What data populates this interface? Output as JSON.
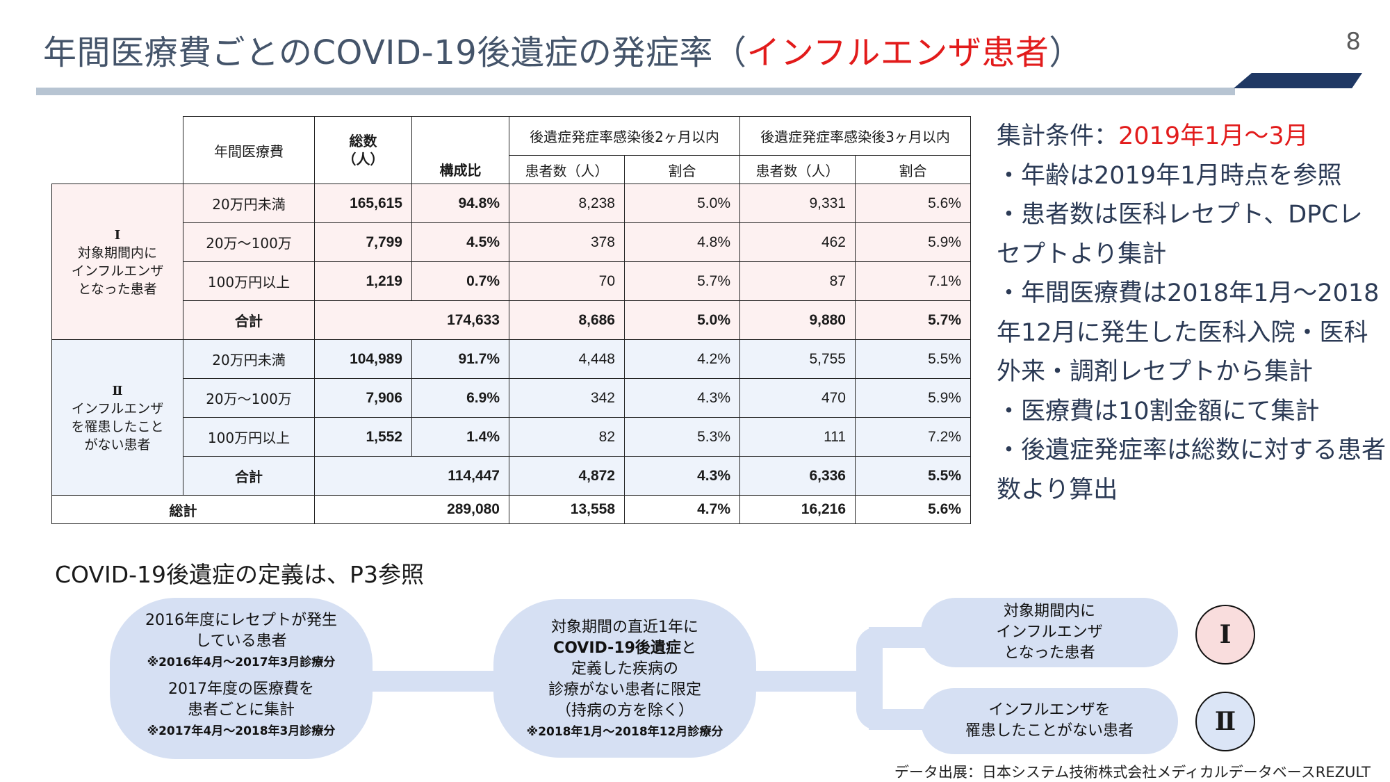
{
  "title": {
    "main": "年間医療費ごとのCOVID-19後遺症の発症率（",
    "highlight": "インフルエンザ患者",
    "end": "）"
  },
  "page_number": "8",
  "table": {
    "h_medical_cost": "年間医療費",
    "h_total": "総数\n（人）",
    "h_ratio": "構成比",
    "h_group2m": "後遺症発症率感染後2ヶ月以内",
    "h_group3m": "後遺症発症率感染後3ヶ月以内",
    "h_patients": "患者数（人）",
    "h_rate": "割合",
    "g1_label_roman": "Ⅰ",
    "g1_label": "対象期間内に\nインフルエンザ\nとなった患者",
    "g2_label_roman": "Ⅱ",
    "g2_label": "インフルエンザ\nを罹患したこと\nがない患者",
    "g1_rows": [
      {
        "cat": "20万円未満",
        "total": "165,615",
        "ratio": "94.8%",
        "p2": "8,238",
        "r2": "5.0%",
        "p3": "9,331",
        "r3": "5.6%"
      },
      {
        "cat": "20万〜100万",
        "total": "7,799",
        "ratio": "4.5%",
        "p2": "378",
        "r2": "4.8%",
        "p3": "462",
        "r3": "5.9%"
      },
      {
        "cat": "100万円以上",
        "total": "1,219",
        "ratio": "0.7%",
        "p2": "70",
        "r2": "5.7%",
        "p3": "87",
        "r3": "7.1%"
      }
    ],
    "g1_subtotal": {
      "cat": "合計",
      "total": "174,633",
      "p2": "8,686",
      "r2": "5.0%",
      "p3": "9,880",
      "r3": "5.7%"
    },
    "g2_rows": [
      {
        "cat": "20万円未満",
        "total": "104,989",
        "ratio": "91.7%",
        "p2": "4,448",
        "r2": "4.2%",
        "p3": "5,755",
        "r3": "5.5%"
      },
      {
        "cat": "20万〜100万",
        "total": "7,906",
        "ratio": "6.9%",
        "p2": "342",
        "r2": "4.3%",
        "p3": "470",
        "r3": "5.9%"
      },
      {
        "cat": "100万円以上",
        "total": "1,552",
        "ratio": "1.4%",
        "p2": "82",
        "r2": "5.3%",
        "p3": "111",
        "r3": "7.2%"
      }
    ],
    "g2_subtotal": {
      "cat": "合計",
      "total": "114,447",
      "p2": "4,872",
      "r2": "4.3%",
      "p3": "6,336",
      "r3": "5.5%"
    },
    "grand_total": {
      "cat": "総計",
      "total": "289,080",
      "p2": "13,558",
      "r2": "4.7%",
      "p3": "16,216",
      "r3": "5.6%"
    }
  },
  "notes": {
    "cond_label": "集計条件：",
    "cond_period": "2019年1月〜3月",
    "items": [
      "・年齢は2019年1月時点を参照",
      "・患者数は医科レセプト、DPCレセプトより集計",
      "・年間医療費は2018年1月〜2018年12月に発生した医科入院・医科外来・調剤レセプトから集計",
      "・医療費は10割金額にて集計",
      "・後遺症発症率は総数に対する患者数より算出"
    ]
  },
  "definition_note": "COVID-19後遺症の定義は、P3参照",
  "flow": {
    "box1_line1": "2016年度にレセプトが発生\nしている患者",
    "box1_sub1": "※2016年4月〜2017年3月診療分",
    "box1_line2": "2017年度の医療費を\n患者ごとに集計",
    "box1_sub2": "※2017年4月〜2018年3月診療分",
    "box2_pre": "対象期間の直近1年に",
    "box2_bold": "COVID-19後遺症",
    "box2_post": "と\n定義した疾病の\n診療がない患者に限定\n（持病の方を除く）",
    "box2_sub": "※2018年1月〜2018年12月診療分",
    "box3": "対象期間内に\nインフルエンザ\nとなった患者",
    "box4": "インフルエンザを\n罹患したことがない患者",
    "circle1": "Ⅰ",
    "circle2": "Ⅱ",
    "circle1_color": "#f9dddd",
    "circle2_color": "#dbe5f6"
  },
  "source": "データ出展：日本システム技術株式会社メディカルデータベースREZULT"
}
